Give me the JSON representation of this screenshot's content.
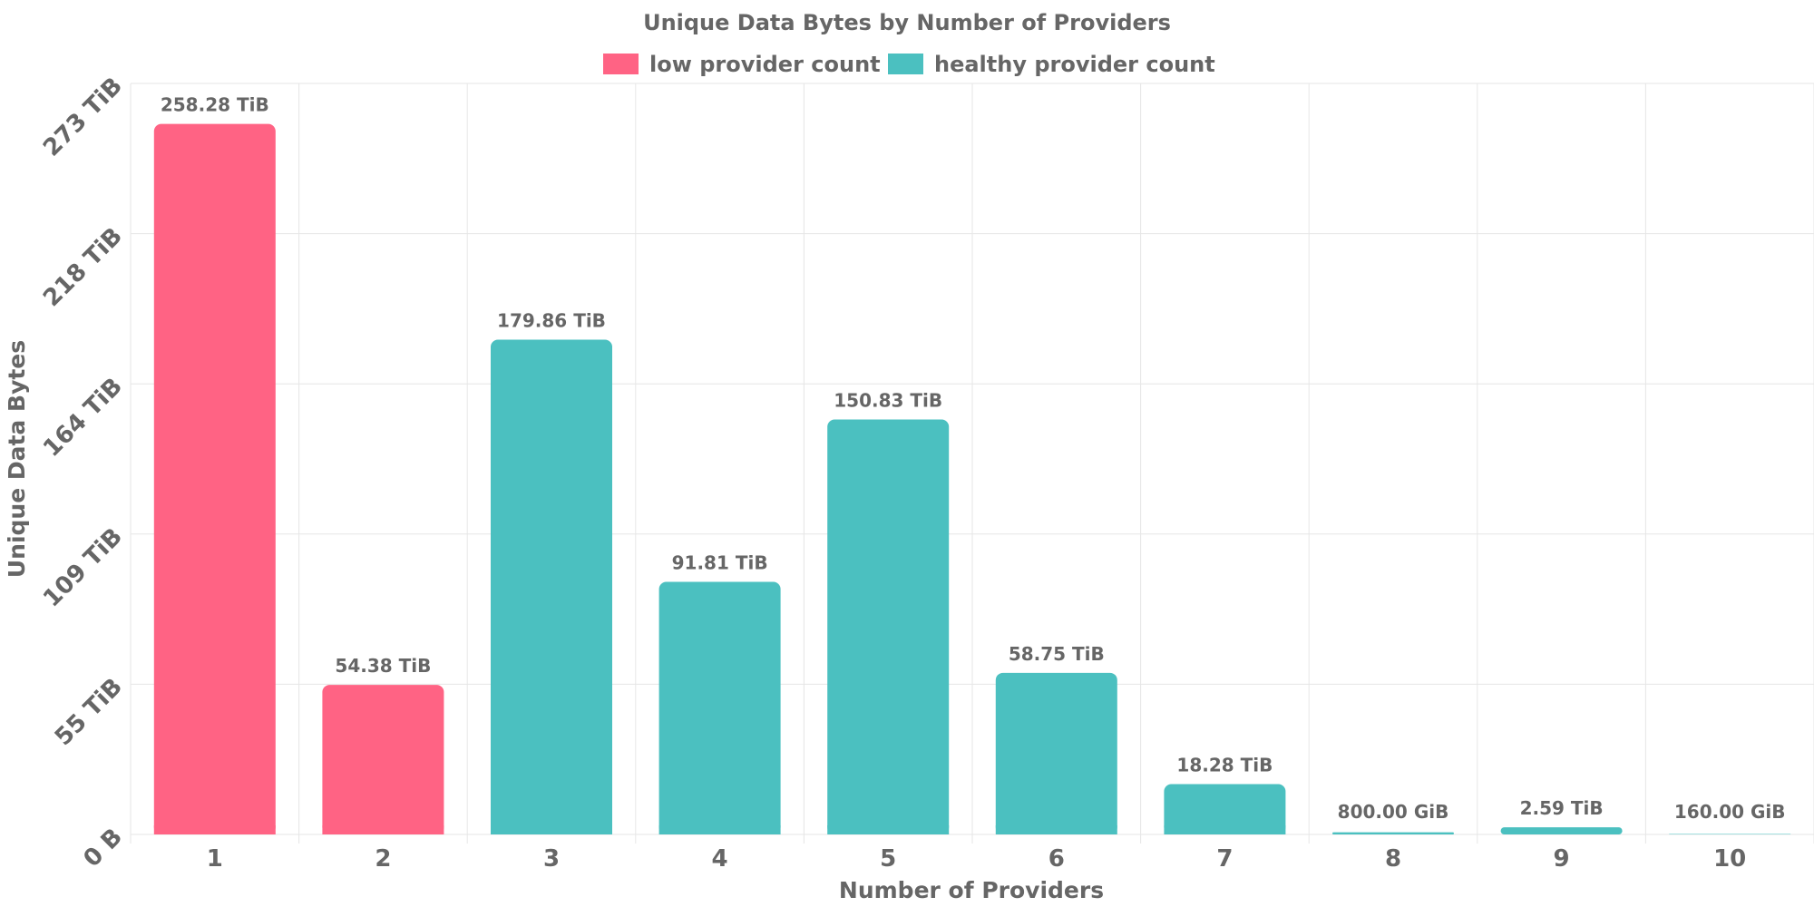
{
  "chart_data": {
    "type": "bar",
    "title": "Unique Data Bytes by Number of Providers",
    "xlabel": "Number of Providers",
    "ylabel": "Unique Data Bytes",
    "categories": [
      "1",
      "2",
      "3",
      "4",
      "5",
      "6",
      "7",
      "8",
      "9",
      "10"
    ],
    "values_tib": [
      258.28,
      54.38,
      179.86,
      91.81,
      150.83,
      58.75,
      18.28,
      0.78125,
      2.59,
      0.15625
    ],
    "data_labels": [
      "258.28 TiB",
      "54.38 TiB",
      "179.86 TiB",
      "91.81 TiB",
      "150.83 TiB",
      "58.75 TiB",
      "18.28 TiB",
      "800.00 GiB",
      "2.59 TiB",
      "160.00 GiB"
    ],
    "series_membership": [
      0,
      0,
      1,
      1,
      1,
      1,
      1,
      1,
      1,
      1
    ],
    "series": [
      {
        "name": "low provider count",
        "color": "#ff6384"
      },
      {
        "name": "healthy provider count",
        "color": "#4bc0c0"
      }
    ],
    "yticks": [
      "0 B",
      "55 TiB",
      "109 TiB",
      "164 TiB",
      "218 TiB",
      "273 TiB"
    ],
    "ylim_tib": [
      0,
      273
    ],
    "grid": true,
    "legend_position": "top-center"
  }
}
